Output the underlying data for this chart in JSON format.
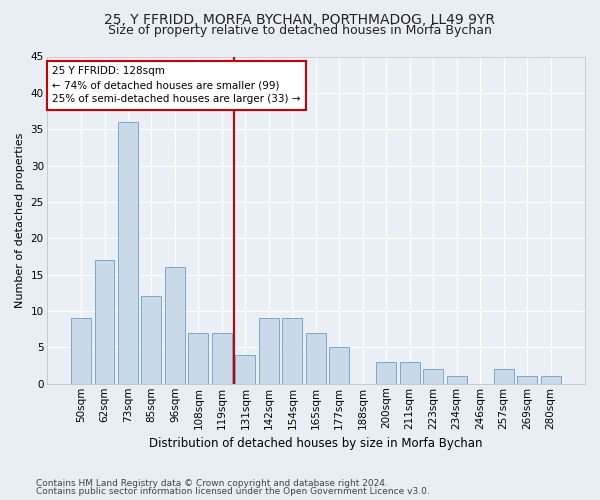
{
  "title": "25, Y FFRIDD, MORFA BYCHAN, PORTHMADOG, LL49 9YR",
  "subtitle": "Size of property relative to detached houses in Morfa Bychan",
  "xlabel": "Distribution of detached houses by size in Morfa Bychan",
  "ylabel": "Number of detached properties",
  "footnote1": "Contains HM Land Registry data © Crown copyright and database right 2024.",
  "footnote2": "Contains public sector information licensed under the Open Government Licence v3.0.",
  "categories": [
    "50sqm",
    "62sqm",
    "73sqm",
    "85sqm",
    "96sqm",
    "108sqm",
    "119sqm",
    "131sqm",
    "142sqm",
    "154sqm",
    "165sqm",
    "177sqm",
    "188sqm",
    "200sqm",
    "211sqm",
    "223sqm",
    "234sqm",
    "246sqm",
    "257sqm",
    "269sqm",
    "280sqm"
  ],
  "values": [
    9,
    17,
    36,
    12,
    16,
    7,
    7,
    4,
    9,
    9,
    7,
    5,
    0,
    3,
    3,
    2,
    1,
    0,
    2,
    1,
    1
  ],
  "bar_color": "#c9d9ea",
  "bar_edge_color": "#7aaac8",
  "vline_x_index": 7,
  "vline_color": "#cc0000",
  "annotation_title": "25 Y FFRIDD: 128sqm",
  "annotation_line1": "← 74% of detached houses are smaller (99)",
  "annotation_line2": "25% of semi-detached houses are larger (33) →",
  "annotation_box_color": "#ffffff",
  "annotation_box_edge": "#cc0000",
  "ylim": [
    0,
    45
  ],
  "yticks": [
    0,
    5,
    10,
    15,
    20,
    25,
    30,
    35,
    40,
    45
  ],
  "bg_color": "#e8eef4",
  "plot_bg_color": "#eaeff6",
  "grid_color": "#ffffff",
  "title_fontsize": 10,
  "subtitle_fontsize": 9,
  "xlabel_fontsize": 8.5,
  "ylabel_fontsize": 8,
  "tick_fontsize": 7.5,
  "footnote_fontsize": 6.5,
  "annotation_fontsize": 7.5
}
